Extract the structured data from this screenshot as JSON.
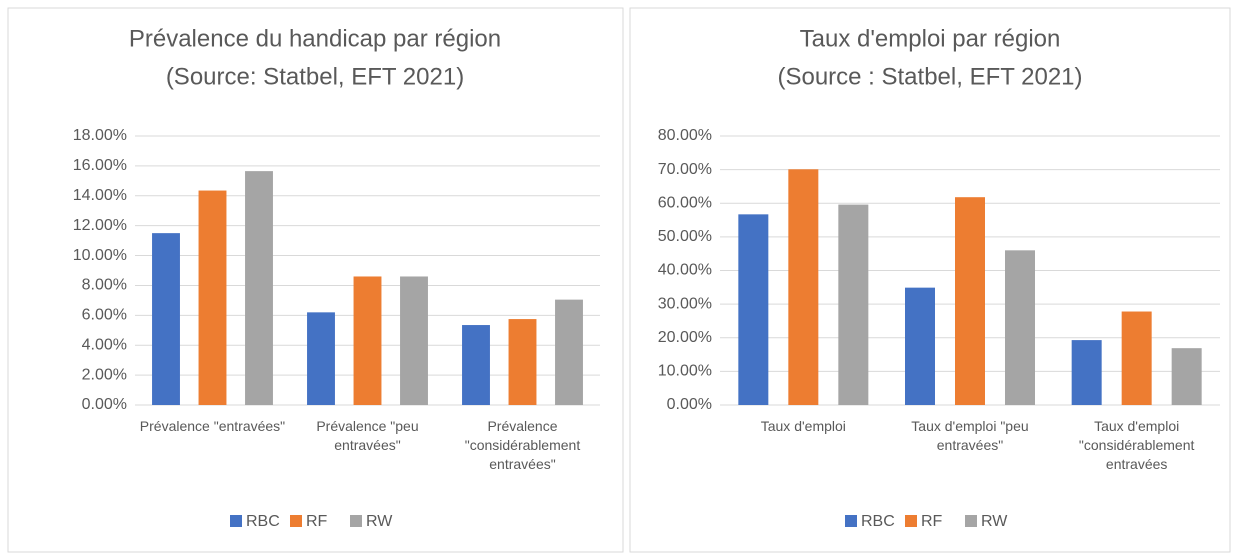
{
  "chart_data": [
    {
      "type": "bar",
      "title": "Prévalence du handicap par région",
      "subtitle": "(Source: Statbel, EFT 2021)",
      "categories": [
        "Prévalence \"entravées\"",
        "Prévalence \"peu entravées\"",
        "Prévalence \"considérablement entravées\""
      ],
      "series": [
        {
          "name": "RBC",
          "color": "#4472c4",
          "values": [
            11.5,
            6.2,
            5.35
          ]
        },
        {
          "name": "RF",
          "color": "#ed7d31",
          "values": [
            14.35,
            8.6,
            5.75
          ]
        },
        {
          "name": "RW",
          "color": "#a5a5a5",
          "values": [
            15.65,
            8.6,
            7.05
          ]
        }
      ],
      "ylim": [
        0,
        18
      ],
      "yticks": [
        {
          "value": 0,
          "label": "0.00%"
        },
        {
          "value": 2,
          "label": "2.00%"
        },
        {
          "value": 4,
          "label": "4.00%"
        },
        {
          "value": 6,
          "label": "6.00%"
        },
        {
          "value": 8,
          "label": "8.00%"
        },
        {
          "value": 10,
          "label": "10.00%"
        },
        {
          "value": 12,
          "label": "12.00%"
        },
        {
          "value": 14,
          "label": "14.00%"
        },
        {
          "value": 16,
          "label": "16.00%"
        },
        {
          "value": 18,
          "label": "18.00%"
        }
      ],
      "grid": true,
      "legend": "bottom"
    },
    {
      "type": "bar",
      "title": "Taux d'emploi par région",
      "subtitle": "(Source : Statbel, EFT 2021)",
      "categories": [
        "Taux d'emploi",
        "Taux d'emploi \"peu entravées\"",
        "Taux d'emploi \"considérablement entravées"
      ],
      "series": [
        {
          "name": "RBC",
          "color": "#4472c4",
          "values": [
            56.7,
            34.9,
            19.3
          ]
        },
        {
          "name": "RF",
          "color": "#ed7d31",
          "values": [
            70.1,
            61.8,
            27.8
          ]
        },
        {
          "name": "RW",
          "color": "#a5a5a5",
          "values": [
            59.6,
            46.0,
            16.9
          ]
        }
      ],
      "ylim": [
        0,
        80
      ],
      "yticks": [
        {
          "value": 0,
          "label": "0.00%"
        },
        {
          "value": 10,
          "label": "10.00%"
        },
        {
          "value": 20,
          "label": "20.00%"
        },
        {
          "value": 30,
          "label": "30.00%"
        },
        {
          "value": 40,
          "label": "40.00%"
        },
        {
          "value": 50,
          "label": "50.00%"
        },
        {
          "value": 60,
          "label": "60.00%"
        },
        {
          "value": 70,
          "label": "70.00%"
        },
        {
          "value": 80,
          "label": "80.00%"
        }
      ],
      "grid": true,
      "legend": "bottom"
    }
  ]
}
